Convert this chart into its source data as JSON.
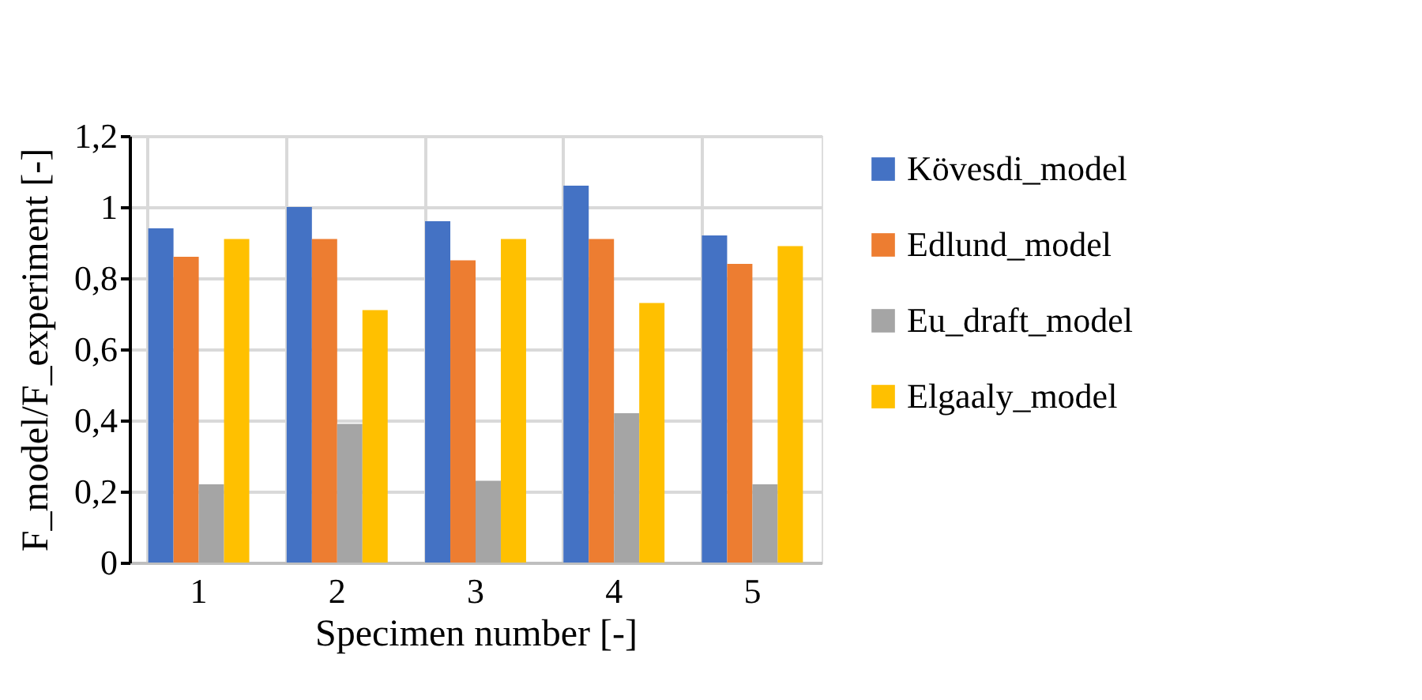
{
  "chart_data": {
    "type": "bar",
    "xlabel": "Specimen number [-]",
    "ylabel": "F_model/F_experiment [-]",
    "categories": [
      "1",
      "2",
      "3",
      "4",
      "5"
    ],
    "series": [
      {
        "name": "Kövesdi_model",
        "color": "#4472c4",
        "values": [
          0.94,
          1.0,
          0.96,
          1.06,
          0.92
        ]
      },
      {
        "name": "Edlund_model",
        "color": "#ed7d31",
        "values": [
          0.86,
          0.91,
          0.85,
          0.91,
          0.84
        ]
      },
      {
        "name": "Eu_draft_model",
        "color": "#a5a5a5",
        "values": [
          0.22,
          0.39,
          0.23,
          0.42,
          0.22
        ]
      },
      {
        "name": "Elgaaly_model",
        "color": "#ffc000",
        "values": [
          0.91,
          0.71,
          0.91,
          0.73,
          0.89
        ]
      }
    ],
    "ylim": [
      0,
      1.2
    ],
    "yticks": [
      0,
      {
        "value": 0.2,
        "label": "0,2"
      },
      {
        "value": 0.4,
        "label": "0,4"
      },
      {
        "value": 0.6,
        "label": "0,6"
      },
      {
        "value": 0.8,
        "label": "0,8"
      },
      1,
      {
        "value": 1.2,
        "label": "1,2"
      }
    ],
    "grid": true,
    "legend": "right"
  }
}
